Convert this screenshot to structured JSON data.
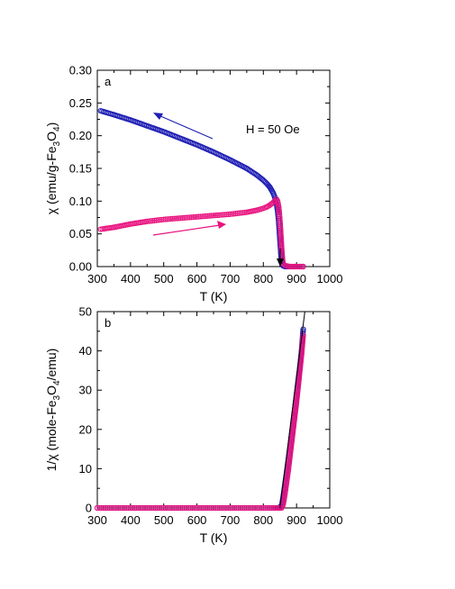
{
  "chart_data": [
    {
      "type": "scatter",
      "panel_label": "a",
      "xlabel": "T (K)",
      "ylabel_parts": [
        "χ (emu/g-Fe",
        "3",
        "O",
        "4",
        ")"
      ],
      "xlim": [
        300,
        1000
      ],
      "ylim": [
        0,
        0.3
      ],
      "xticks": [
        "300",
        "400",
        "500",
        "600",
        "700",
        "800",
        "900",
        "1000"
      ],
      "yticks": [
        "0.00",
        "0.05",
        "0.10",
        "0.15",
        "0.20",
        "0.25",
        "0.30"
      ],
      "annotation": "H = 50 Oe",
      "grid": false,
      "colors": {
        "cooling": "#1f1fb4",
        "heating": "#e8147f"
      },
      "series": [
        {
          "direction": "cooling",
          "x": [
            310,
            350,
            400,
            450,
            500,
            550,
            600,
            650,
            700,
            750,
            780,
            800,
            810,
            820,
            830,
            835,
            840,
            843,
            846,
            848,
            850,
            852,
            854,
            856,
            858,
            860,
            865,
            870,
            880,
            890,
            900,
            910,
            920
          ],
          "y": [
            0.238,
            0.232,
            0.224,
            0.215,
            0.206,
            0.196,
            0.186,
            0.175,
            0.163,
            0.15,
            0.14,
            0.132,
            0.127,
            0.121,
            0.112,
            0.105,
            0.095,
            0.085,
            0.07,
            0.055,
            0.04,
            0.025,
            0.012,
            0.005,
            0.002,
            0.001,
            0.0,
            0.0,
            0.0,
            0.0,
            0.0,
            0.0,
            0.0
          ]
        },
        {
          "direction": "heating",
          "x": [
            310,
            350,
            400,
            450,
            500,
            550,
            600,
            650,
            700,
            750,
            780,
            800,
            810,
            820,
            830,
            835,
            840,
            843,
            846,
            848,
            850,
            852,
            854,
            856,
            858,
            860,
            865,
            870,
            880,
            890,
            900,
            910,
            920
          ],
          "y": [
            0.057,
            0.06,
            0.065,
            0.069,
            0.072,
            0.074,
            0.076,
            0.078,
            0.08,
            0.083,
            0.086,
            0.089,
            0.091,
            0.094,
            0.098,
            0.101,
            0.103,
            0.1,
            0.092,
            0.082,
            0.07,
            0.055,
            0.038,
            0.022,
            0.01,
            0.004,
            0.002,
            0.001,
            0.0,
            0.0,
            0.0,
            0.0,
            0.0
          ]
        }
      ]
    },
    {
      "type": "scatter",
      "panel_label": "b",
      "xlabel": "T (K)",
      "ylabel_parts": [
        "1/χ (mole-Fe",
        "3",
        "O",
        "4",
        "/emu)"
      ],
      "xlim": [
        300,
        1000
      ],
      "ylim": [
        0,
        50
      ],
      "xticks": [
        "300",
        "400",
        "500",
        "600",
        "700",
        "800",
        "900",
        "1000"
      ],
      "yticks": [
        "0",
        "10",
        "20",
        "30",
        "40",
        "50"
      ],
      "grid": false,
      "colors": {
        "cooling": "#1f1fb4",
        "heating": "#e8147f",
        "fit": "#000000"
      },
      "series": [
        {
          "direction": "cooling",
          "x": [
            300,
            350,
            400,
            450,
            500,
            550,
            600,
            650,
            700,
            750,
            800,
            830,
            845,
            855,
            860,
            865,
            870,
            875,
            880,
            885,
            890,
            895,
            900,
            905,
            910,
            915,
            920
          ],
          "y": [
            0,
            0,
            0,
            0,
            0,
            0,
            0,
            0,
            0,
            0,
            0,
            0,
            0,
            0.5,
            3,
            6,
            9,
            12,
            15,
            18.5,
            22,
            25.5,
            29,
            32.5,
            36,
            40,
            45.5
          ]
        },
        {
          "direction": "heating",
          "x": [
            300,
            350,
            400,
            450,
            500,
            550,
            600,
            650,
            700,
            750,
            800,
            830,
            845,
            855,
            860,
            865,
            870,
            875,
            880,
            885,
            890,
            895,
            900,
            905,
            910,
            915,
            920
          ],
          "y": [
            0,
            0,
            0,
            0,
            0,
            0,
            0,
            0,
            0,
            0,
            0,
            0,
            0,
            0,
            1,
            3.5,
            6.5,
            9.5,
            13,
            16.5,
            20,
            23.5,
            27,
            31,
            35,
            39,
            44
          ]
        }
      ],
      "fit_line": {
        "x": [
          850,
          925
        ],
        "y": [
          0,
          51
        ]
      }
    }
  ]
}
